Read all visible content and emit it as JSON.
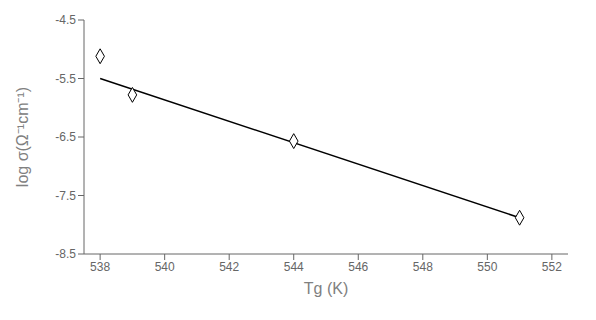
{
  "chart_data": {
    "type": "scatter",
    "xlabel": "Tg (K)",
    "ylabel": "log σ(Ω⁻¹cm⁻¹)",
    "series": [
      {
        "type": "line",
        "x": [
          538,
          551
        ],
        "values": [
          -5.5,
          -7.88
        ],
        "color": "#000000"
      },
      {
        "type": "scatter",
        "x": [
          538,
          539,
          544,
          551
        ],
        "values": [
          -5.12,
          -5.78,
          -6.57,
          -7.88
        ],
        "color": "#000000",
        "marker": "diamond"
      }
    ],
    "xlim": [
      537.5,
      552.5
    ],
    "ylim": [
      -8.5,
      -4.5
    ],
    "xticks": [
      538,
      540,
      542,
      544,
      546,
      548,
      550,
      552
    ],
    "yticks": [
      -8.5,
      -7.5,
      -6.5,
      -5.5,
      -4.5
    ],
    "grid": false
  }
}
